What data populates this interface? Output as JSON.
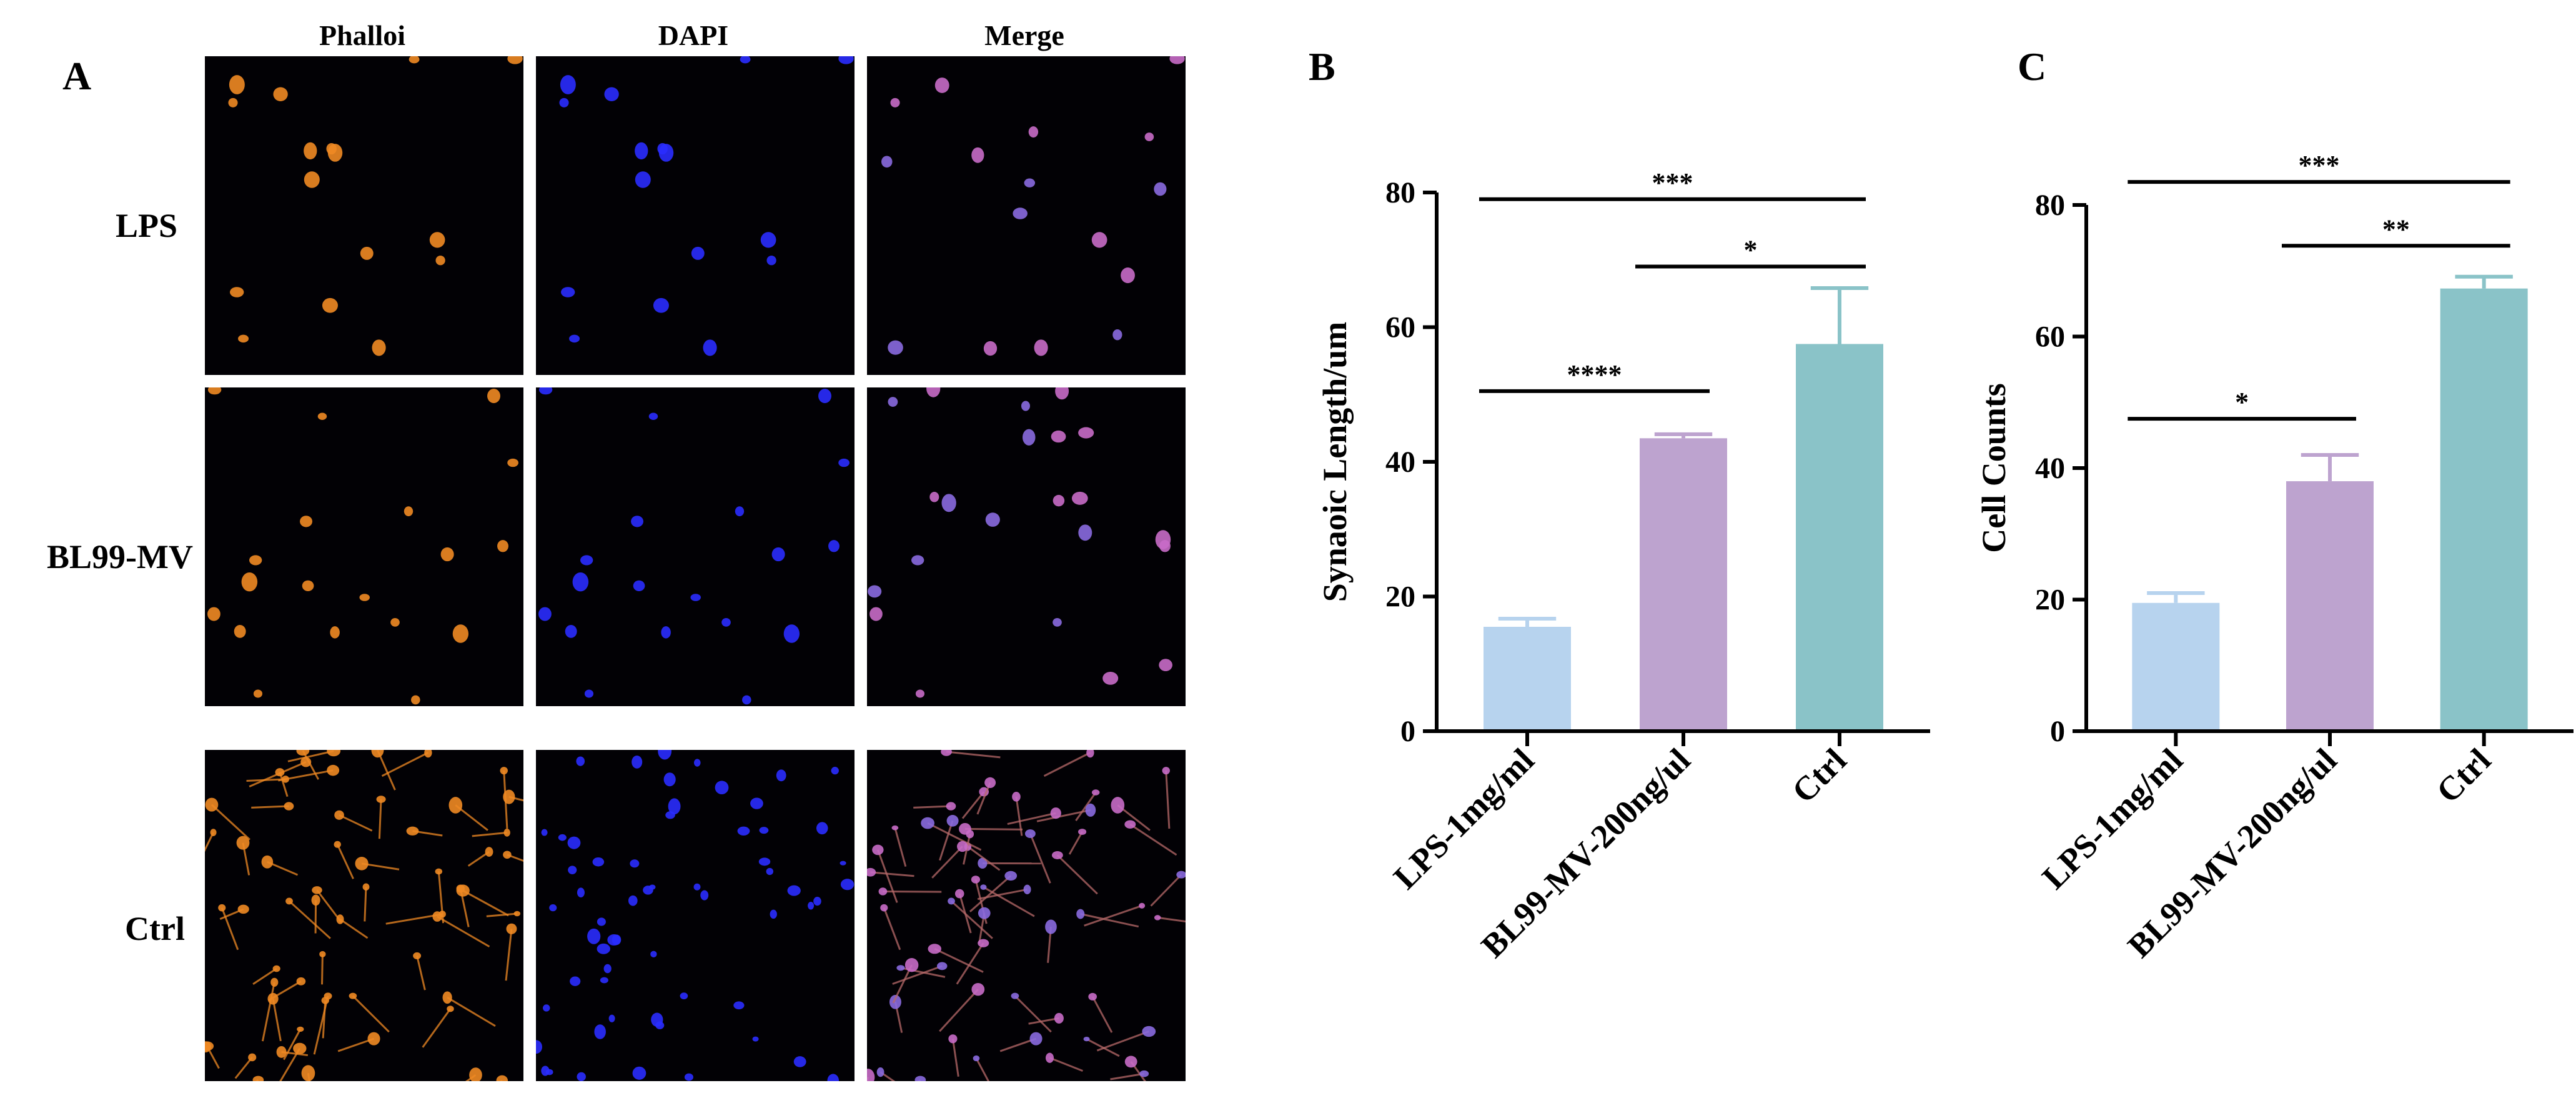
{
  "panel_a": {
    "letter": "A",
    "columns": [
      "Phalloi",
      "DAPI",
      "Merge"
    ],
    "rows": [
      "LPS",
      "BL99-MV",
      "Ctrl"
    ]
  },
  "colors": {
    "phalloidin": "#f08a24",
    "dapi": "#2a2cff",
    "merge": "#c86cc8",
    "background": "#020105",
    "bar_lps": "#b7d3ee",
    "bar_bl99": "#bda3cf",
    "bar_ctrl": "#8ac3c8"
  },
  "chart_data": [
    {
      "panel": "B",
      "type": "bar",
      "categories": [
        "LPS-1mg/ml",
        "BL99-MV-200ng/ul",
        "Ctrl"
      ],
      "values": [
        15.5,
        43.5,
        57.5
      ],
      "errors": [
        1.2,
        0.6,
        8.3
      ],
      "colors": [
        "#b7d3ee",
        "#bda3cf",
        "#8ac3c8"
      ],
      "title": "",
      "xlabel": "",
      "ylabel": "Synaoic Length/um",
      "ylim": [
        0,
        80
      ],
      "yticks": [
        0,
        20,
        40,
        60,
        80
      ],
      "grid": false,
      "significance": [
        {
          "from": 0,
          "to": 2,
          "label": "***",
          "y": 79
        },
        {
          "from": 1,
          "to": 2,
          "label": "*",
          "y": 69
        },
        {
          "from": 0,
          "to": 1,
          "label": "****",
          "y": 50.5
        }
      ]
    },
    {
      "panel": "C",
      "type": "bar",
      "categories": [
        "LPS-1mg/ml",
        "BL99-MV-200ng/ul",
        "Ctrl"
      ],
      "values": [
        19.5,
        38,
        67.3
      ],
      "errors": [
        1.5,
        4,
        1.8
      ],
      "colors": [
        "#b7d3ee",
        "#bda3cf",
        "#8ac3c8"
      ],
      "title": "",
      "xlabel": "",
      "ylabel": "Cell Counts",
      "ylim": [
        0,
        80
      ],
      "yticks": [
        0,
        20,
        40,
        60,
        80
      ],
      "grid": false,
      "significance": [
        {
          "from": 0,
          "to": 2,
          "label": "***",
          "y": 83.5
        },
        {
          "from": 1,
          "to": 2,
          "label": "**",
          "y": 73.8
        },
        {
          "from": 0,
          "to": 1,
          "label": "*",
          "y": 47.5
        }
      ]
    }
  ]
}
